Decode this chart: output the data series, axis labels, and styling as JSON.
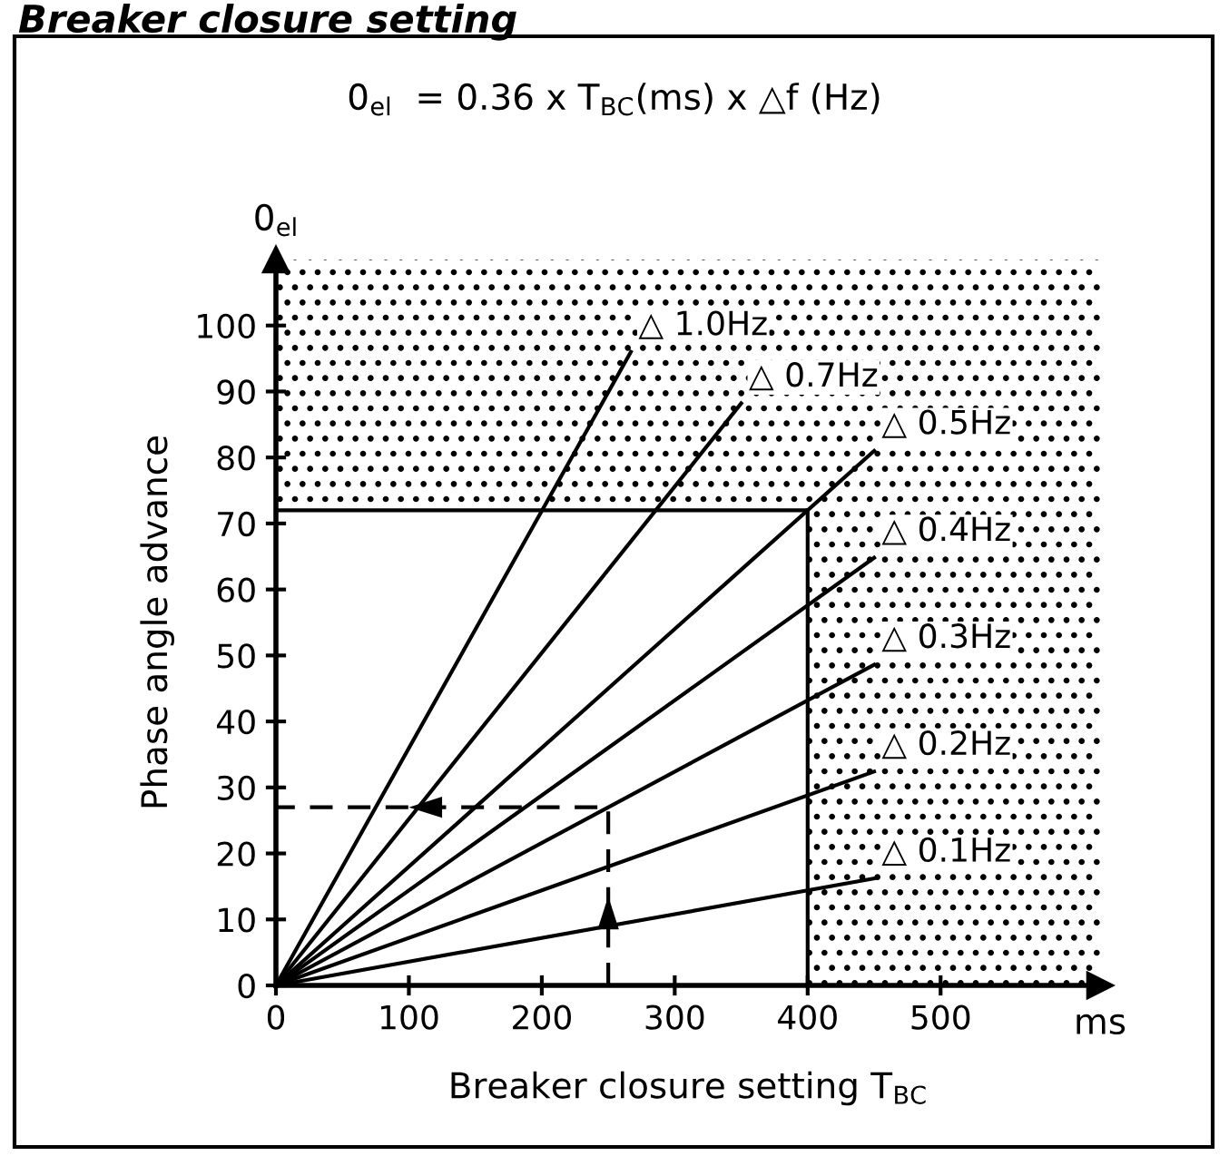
{
  "chart_data": {
    "type": "line",
    "title": "Breaker closure setting",
    "subtitle": "0$_{el}$  = 0.36 x T$_{BC}$(ms) x △f (Hz)",
    "xlabel": "Breaker closure setting T$_{BC}$",
    "ylabel": "Phase angle advance",
    "annotations": [
      "0$_{el}$",
      "ms"
    ],
    "series": [
      {
        "name": "△ 1.0Hz",
        "color": "#000000",
        "x": [
          0,
          267
        ],
        "values": [
          0,
          96
        ]
      },
      {
        "name": "△ 0.7Hz",
        "color": "#000000",
        "x": [
          0,
          350
        ],
        "values": [
          0,
          88.2
        ]
      },
      {
        "name": "△ 0.5Hz",
        "color": "#000000",
        "x": [
          0,
          450
        ],
        "values": [
          0,
          81
        ]
      },
      {
        "name": "△ 0.4Hz",
        "color": "#000000",
        "x": [
          0,
          450
        ],
        "values": [
          0,
          64.8
        ]
      },
      {
        "name": "△ 0.3Hz",
        "color": "#000000",
        "x": [
          0,
          450
        ],
        "values": [
          0,
          48.6
        ]
      },
      {
        "name": "△ 0.2Hz",
        "color": "#000000",
        "x": [
          0,
          450
        ],
        "values": [
          0,
          32.4
        ]
      },
      {
        "name": "△ 0.1Hz",
        "color": "#000000",
        "x": [
          0,
          450
        ],
        "values": [
          0,
          16.2
        ]
      },
      {
        "color": "#000000",
        "x": [
          250,
          250,
          0
        ],
        "values": [
          0,
          27,
          27
        ],
        "line_style": "dashed"
      }
    ],
    "bands": [
      {
        "axis": "y",
        "from": 72,
        "to": 110,
        "color": "#000000"
      },
      {
        "axis": "x",
        "from": 400,
        "to": 620,
        "color": "#000000"
      }
    ],
    "xlim": [
      0,
      620
    ],
    "ylim": [
      0,
      110
    ],
    "xticks": [
      0,
      100,
      200,
      300,
      400,
      500
    ],
    "yticks": [
      0,
      10,
      20,
      30,
      40,
      50,
      60,
      70,
      80,
      90,
      100
    ],
    "ref_lines": [
      {
        "axis": "y",
        "value": 72,
        "color": "#000000"
      },
      {
        "axis": "x",
        "value": 400,
        "color": "#000000"
      }
    ],
    "grid": false,
    "legend": false,
    "line_style": "solid"
  }
}
